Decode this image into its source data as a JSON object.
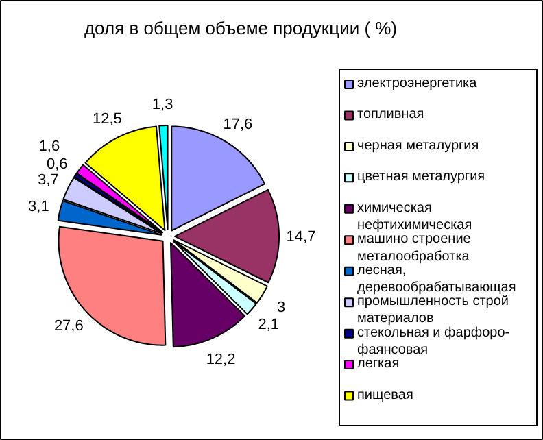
{
  "chart_data": {
    "type": "pie",
    "title": "доля в общем объеме продукции ( %)",
    "categories": [
      "электроэнергетика",
      "топливная",
      "черная металургия",
      "цветная металургия",
      "химическая нефтихимическая",
      "машино строение металообработка",
      "лесная, деревообрабатывающая",
      "промышленность строй материалов",
      "стекольная и фарфоро-фаянсовая",
      "легкая",
      "пищевая",
      null
    ],
    "values": [
      17.6,
      14.7,
      3,
      2.1,
      12.2,
      27.6,
      3.1,
      3.7,
      0.6,
      1.6,
      12.5,
      1.3
    ],
    "value_labels": [
      "17,6",
      "14,7",
      "3",
      "2,1",
      "12,2",
      "27,6",
      "3,1",
      "3,7",
      "0,6",
      "1,6",
      "12,5",
      "1,3"
    ],
    "colors": [
      "#9999ff",
      "#993366",
      "#ffffcc",
      "#ccffff",
      "#660066",
      "#ff8080",
      "#0066cc",
      "#ccccff",
      "#000080",
      "#ff00ff",
      "#ffff00",
      "#00ffff"
    ],
    "legend": "right"
  }
}
